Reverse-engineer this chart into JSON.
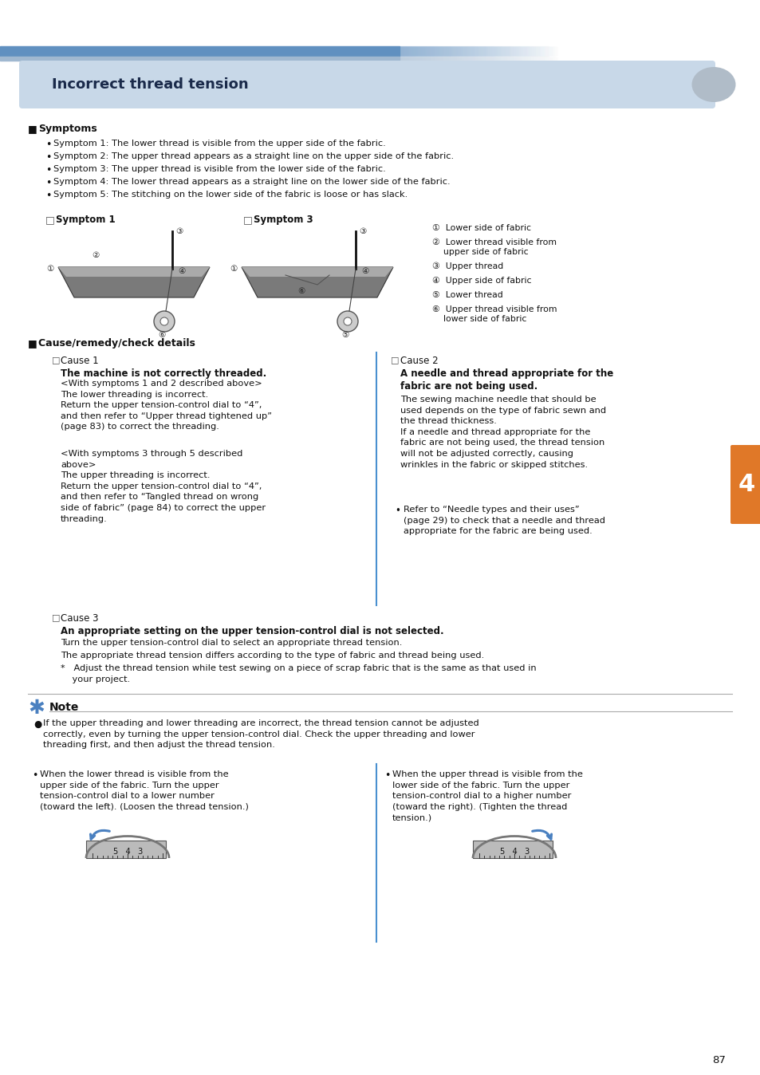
{
  "title": "Incorrect thread tension",
  "page_num": "87",
  "bg_color": "#ffffff",
  "header_bg": "#c8d8e8",
  "blue_stripe_color": "#6090c0",
  "light_blue_stripe": "#a0b8d0",
  "blue_line_color": "#4a90d0",
  "symptoms_header": "Symptoms",
  "symptoms": [
    "Symptom 1: The lower thread is visible from the upper side of the fabric.",
    "Symptom 2: The upper thread appears as a straight line on the upper side of the fabric.",
    "Symptom 3: The upper thread is visible from the lower side of the fabric.",
    "Symptom 4: The lower thread appears as a straight line on the lower side of the fabric.",
    "Symptom 5: The stitching on the lower side of the fabric is loose or has slack."
  ],
  "symptom1_label": "Symptom 1",
  "symptom3_label": "Symptom 3",
  "legend_items": [
    "①  Lower side of fabric",
    "②  Lower thread visible from\n    upper side of fabric",
    "③  Upper thread",
    "④  Upper side of fabric",
    "⑤  Lower thread",
    "⑥  Upper thread visible from\n    lower side of fabric"
  ],
  "cause_remedy_header": "Cause/remedy/check details",
  "cause1_label": "Cause 1",
  "cause1_bold": "The machine is not correctly threaded.",
  "cause1_text1": "<With symptoms 1 and 2 described above>\nThe lower threading is incorrect.\nReturn the upper tension-control dial to “4”,\nand then refer to “Upper thread tightened up”\n(page 83) to correct the threading.",
  "cause1_text2": "<With symptoms 3 through 5 described\nabove>\nThe upper threading is incorrect.\nReturn the upper tension-control dial to “4”,\nand then refer to “Tangled thread on wrong\nside of fabric” (page 84) to correct the upper\nthreading.",
  "cause2_label": "Cause 2",
  "cause2_bold": "A needle and thread appropriate for the\nfabric are not being used.",
  "cause2_text": "The sewing machine needle that should be\nused depends on the type of fabric sewn and\nthe thread thickness.\nIf a needle and thread appropriate for the\nfabric are not being used, the thread tension\nwill not be adjusted correctly, causing\nwrinkles in the fabric or skipped stitches.",
  "cause2_bullet": "Refer to “Needle types and their uses”\n(page 29) to check that a needle and thread\nappropriate for the fabric are being used.",
  "cause3_label": "Cause 3",
  "cause3_bold": "An appropriate setting on the upper tension-control dial is not selected.",
  "cause3_text1": "Turn the upper tension-control dial to select an appropriate thread tension.",
  "cause3_text2": "The appropriate thread tension differs according to the type of fabric and thread being used.",
  "cause3_note": "*   Adjust the thread tension while test sewing on a piece of scrap fabric that is the same as that used in\n    your project.",
  "note_header": "Note",
  "note_text": "If the upper threading and lower threading are incorrect, the thread tension cannot be adjusted\ncorrectly, even by turning the upper tension-control dial. Check the upper threading and lower\nthreading first, and then adjust the thread tension.",
  "bullet_left_header": "When the lower thread is visible from the\nupper side of the fabric. Turn the upper\ntension-control dial to a lower number\n(toward the left). (Loosen the thread tension.)",
  "bullet_right_header": "When the upper thread is visible from the\nlower side of the fabric. Turn the upper\ntension-control dial to a higher number\n(toward the right). (Tighten the thread\ntension.)",
  "tab_color": "#e07828",
  "tab_number": "4"
}
